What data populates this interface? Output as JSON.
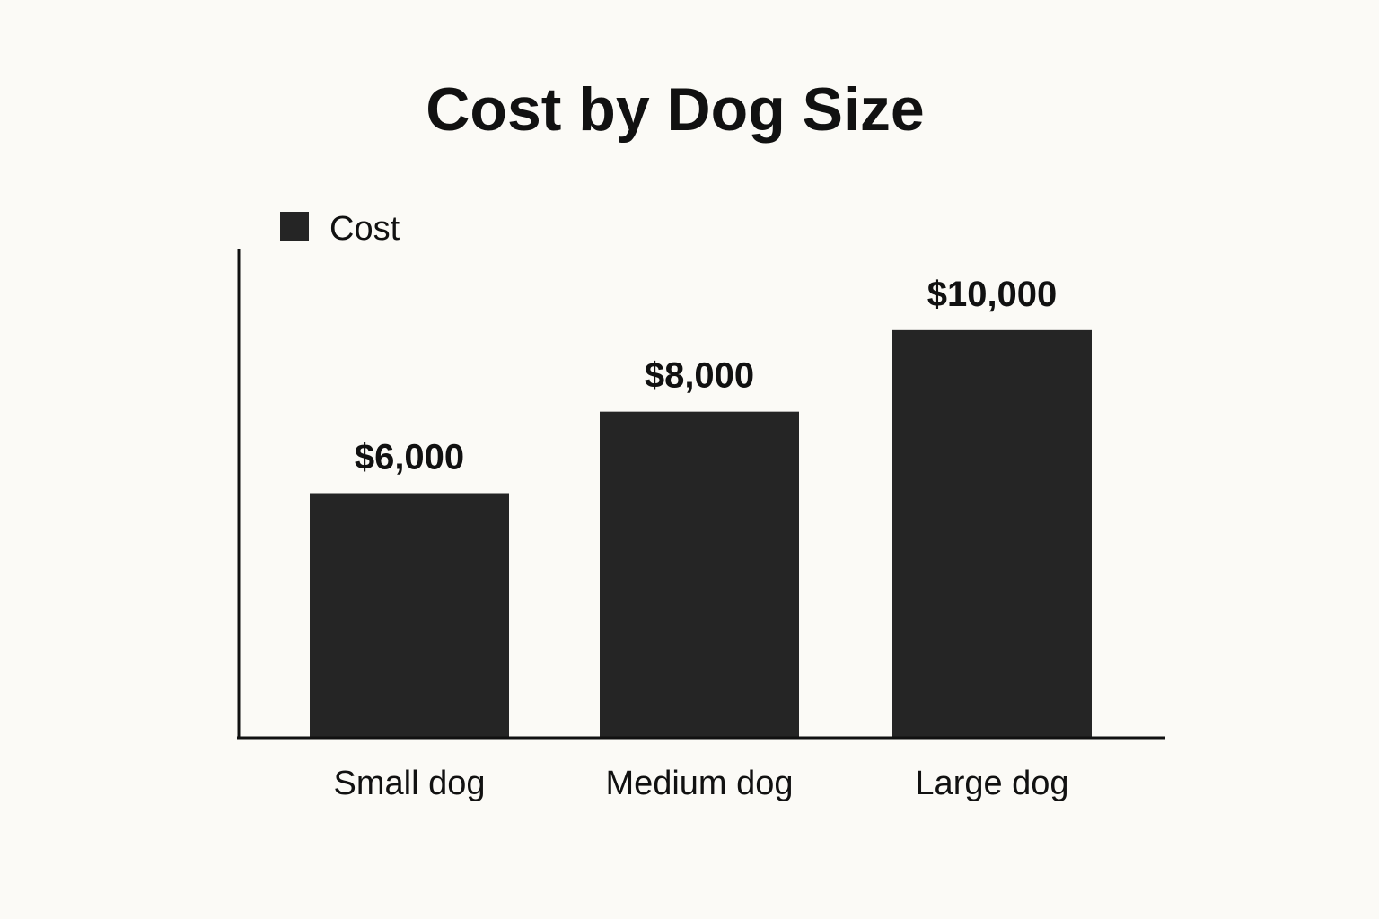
{
  "chart_data": {
    "type": "bar",
    "title": "Cost by Dog Size",
    "xlabel": "",
    "ylabel": "",
    "categories": [
      "Small dog",
      "Medium dog",
      "Large dog"
    ],
    "series": [
      {
        "name": "Cost",
        "values": [
          6000,
          8000,
          10000
        ],
        "data_labels": [
          "$6,000",
          "$8,000",
          "$10,000"
        ]
      }
    ],
    "ylim": [
      0,
      12000
    ],
    "grid": false,
    "legend_position": "top-left",
    "colors": {
      "bar": "#252525",
      "axis": "#111111",
      "background": "#fbfaf6"
    }
  }
}
